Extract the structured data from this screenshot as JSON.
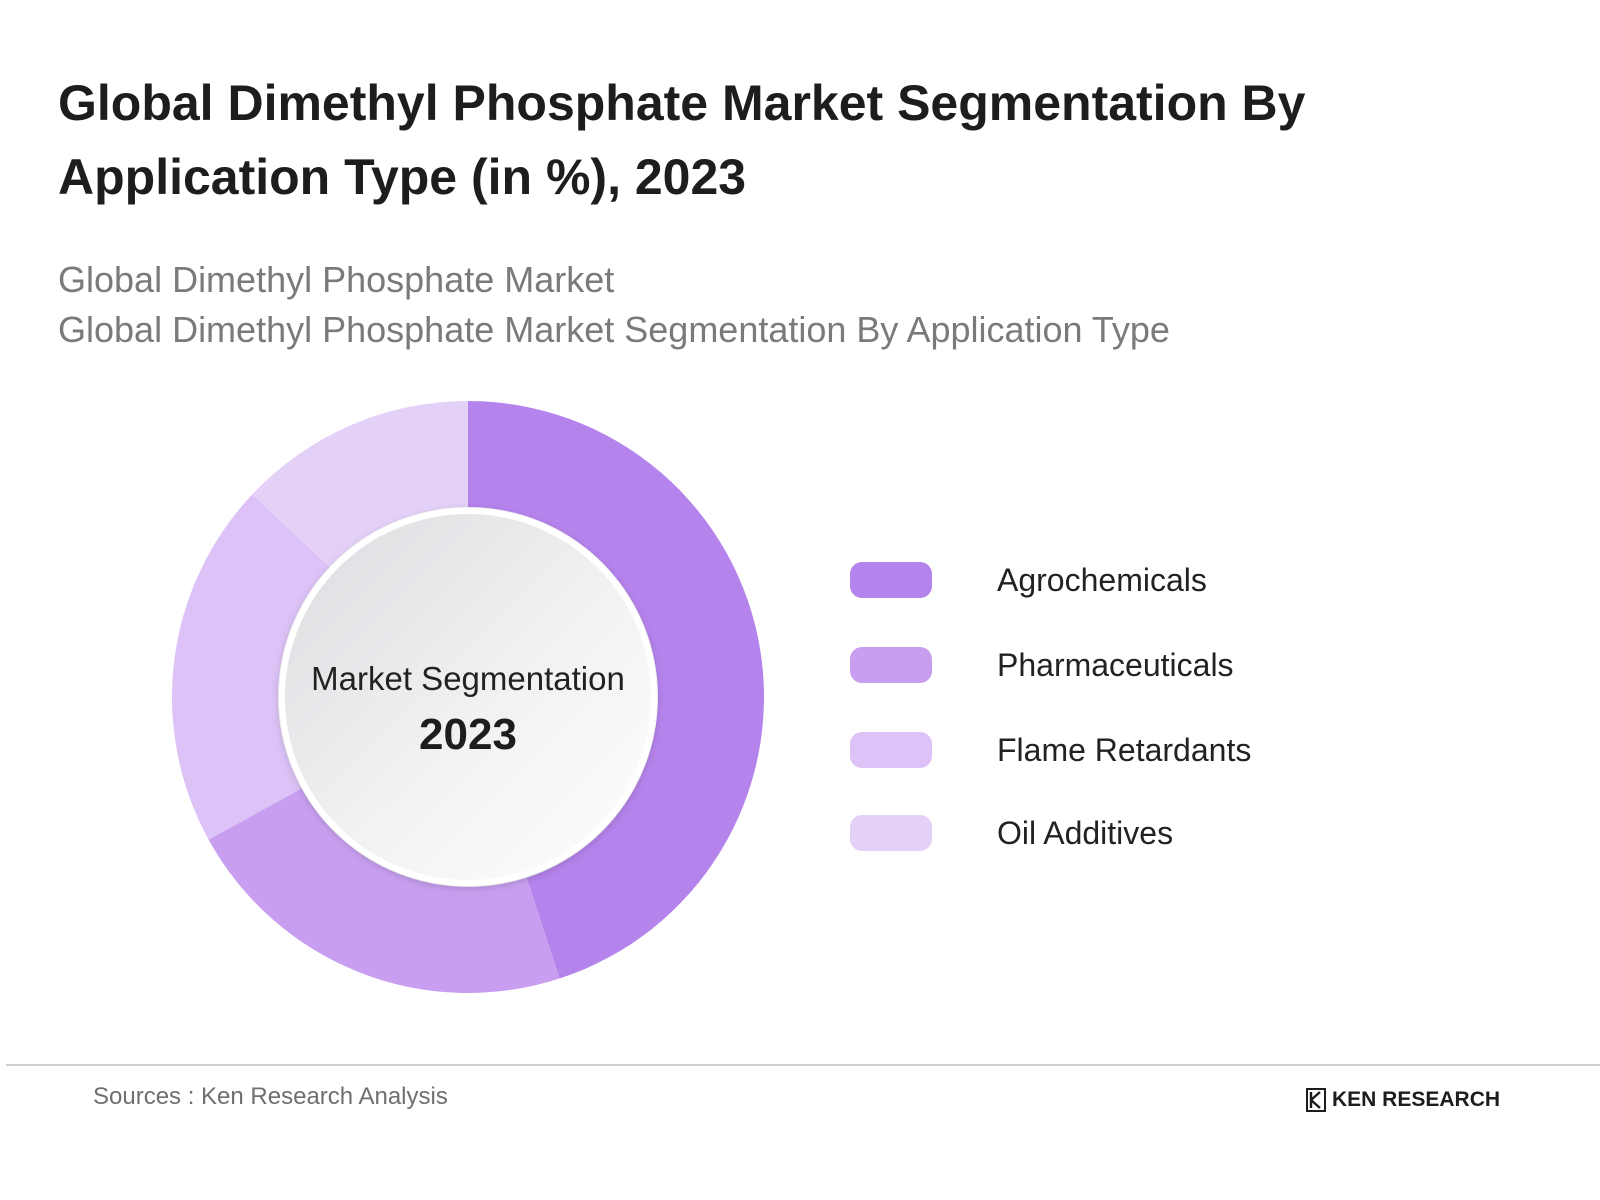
{
  "header": {
    "title": "Global Dimethyl Phosphate Market Segmentation By Application Type (in %), 2023",
    "subtitle_1": "Global Dimethyl Phosphate Market",
    "subtitle_2": "Global Dimethyl Phosphate Market Segmentation By Application Type"
  },
  "chart_data": {
    "type": "pie",
    "variant": "donut",
    "title": "Global Dimethyl Phosphate Market Segmentation By Application Type (in %), 2023",
    "center_label": "Market Segmentation",
    "center_value": "2023",
    "legend_position": "right",
    "categories": [
      "Agrochemicals",
      "Pharmaceuticals",
      "Flame Retardants",
      "Oil Additives"
    ],
    "values": [
      45,
      22,
      20,
      13
    ],
    "colors": [
      "#b583ec",
      "#c89ff0",
      "#dcc2f6",
      "#e4d1f8"
    ]
  },
  "footer": {
    "source": "Sources : Ken Research Analysis",
    "brand": "KEN RESEARCH"
  }
}
